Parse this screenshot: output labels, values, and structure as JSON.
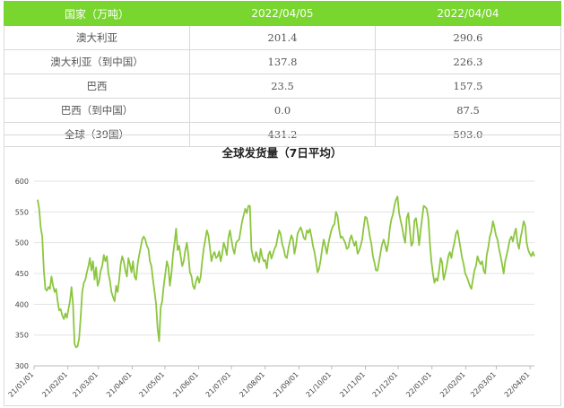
{
  "table": {
    "headers": [
      "国家（万吨）",
      "2022/04/05",
      "2022/04/04"
    ],
    "rows": [
      {
        "label": "澳大利亚",
        "v1": "201.4",
        "v2": "290.6"
      },
      {
        "label": "澳大利亚（到中国）",
        "v1": "137.8",
        "v2": "226.3"
      },
      {
        "label": "巴西",
        "v1": "23.5",
        "v2": "157.5"
      },
      {
        "label": "巴西（到中国）",
        "v1": "0.0",
        "v2": "87.5"
      },
      {
        "label": "全球（39国）",
        "v1": "431.2",
        "v2": "593.0"
      }
    ]
  },
  "chart_data": {
    "type": "line",
    "title": "全球发货量（7日平均）",
    "ylim": [
      300,
      600
    ],
    "yticks": [
      "300",
      "350",
      "400",
      "450",
      "500",
      "550",
      "600"
    ],
    "xticks": [
      "21/01/01",
      "21/02/01",
      "21/03/01",
      "21/04/01",
      "21/05/01",
      "21/06/01",
      "21/07/01",
      "21/08/01",
      "21/09/01",
      "21/10/01",
      "21/11/01",
      "21/12/01",
      "22/01/01",
      "22/02/01",
      "22/03/01",
      "22/04/01"
    ],
    "grid": true,
    "color": "#8cc63f",
    "series": [
      {
        "values": [
          570,
          555,
          525,
          510,
          455,
          425,
          422,
          428,
          425,
          445,
          430,
          420,
          425,
          405,
          390,
          392,
          382,
          376,
          385,
          378,
          392,
          405,
          428,
          400,
          335,
          330,
          332,
          345,
          380,
          420,
          435,
          440,
          452,
          462,
          475,
          455,
          470,
          440,
          460,
          430,
          438,
          455,
          462,
          480,
          470,
          478,
          450,
          438,
          420,
          412,
          405,
          430,
          420,
          440,
          465,
          478,
          470,
          455,
          445,
          475,
          465,
          452,
          470,
          445,
          440,
          465,
          480,
          492,
          505,
          510,
          505,
          495,
          490,
          470,
          462,
          440,
          420,
          400,
          360,
          340,
          395,
          405,
          430,
          450,
          470,
          460,
          430,
          450,
          480,
          500,
          523,
          488,
          495,
          478,
          462,
          470,
          488,
          500,
          480,
          452,
          446,
          430,
          425,
          438,
          445,
          435,
          445,
          470,
          490,
          505,
          520,
          512,
          492,
          470,
          480,
          485,
          475,
          478,
          486,
          470,
          482,
          500,
          492,
          480,
          508,
          520,
          505,
          490,
          482,
          500,
          503,
          505,
          520,
          535,
          545,
          555,
          548,
          560,
          560,
          490,
          478,
          470,
          485,
          476,
          468,
          490,
          477,
          470,
          472,
          458,
          480,
          486,
          474,
          482,
          490,
          495,
          508,
          520,
          514,
          498,
          490,
          478,
          475,
          490,
          502,
          512,
          505,
          482,
          495,
          515,
          520,
          525,
          518,
          508,
          505,
          520,
          516,
          522,
          510,
          495,
          485,
          470,
          452,
          458,
          472,
          490,
          505,
          495,
          482,
          498,
          510,
          520,
          527,
          530,
          550,
          543,
          522,
          508,
          510,
          505,
          500,
          490,
          492,
          505,
          512,
          503,
          495,
          502,
          482,
          487,
          495,
          505,
          525,
          542,
          540,
          526,
          510,
          498,
          478,
          468,
          455,
          455,
          470,
          485,
          498,
          505,
          496,
          486,
          500,
          524,
          538,
          546,
          560,
          570,
          575,
          548,
          536,
          525,
          510,
          500,
          540,
          548,
          520,
          495,
          500,
          536,
          540,
          522,
          496,
          520,
          540,
          560,
          558,
          555,
          540,
          500,
          470,
          450,
          435,
          442,
          438,
          455,
          475,
          468,
          440,
          450,
          462,
          478,
          485,
          475,
          490,
          500,
          515,
          520,
          505,
          490,
          475,
          465,
          450,
          445,
          438,
          430,
          425,
          440,
          455,
          462,
          478,
          470,
          465,
          470,
          455,
          450,
          480,
          492,
          510,
          518,
          535,
          525,
          512,
          505,
          490,
          478,
          465,
          450,
          470,
          480,
          492,
          505,
          510,
          502,
          515,
          523,
          500,
          490,
          508,
          520,
          535,
          528,
          500,
          488,
          482,
          478,
          485,
          478
        ],
        "start": "21/01/01",
        "end": "22/04/05"
      }
    ]
  }
}
